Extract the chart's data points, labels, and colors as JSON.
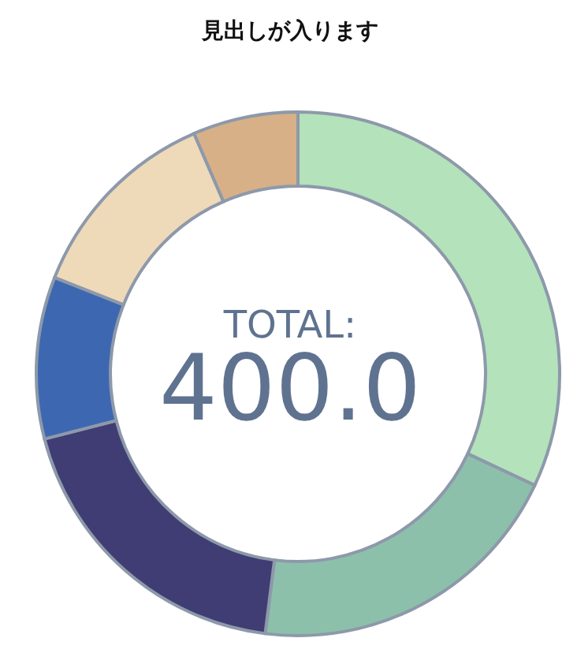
{
  "chart_data": {
    "type": "donut",
    "title": "見出しが入ります",
    "categories": [
      null,
      null,
      null,
      null,
      null,
      null
    ],
    "values": [
      32,
      20,
      19,
      10,
      12.5,
      6.5
    ],
    "colors": [
      "#b3e2bb",
      "#8cc0ab",
      "#3f3d73",
      "#3d68b1",
      "#eed9b9",
      "#d7b088"
    ],
    "annotations": [
      "TOTAL:",
      "400.0"
    ],
    "legend": false
  }
}
